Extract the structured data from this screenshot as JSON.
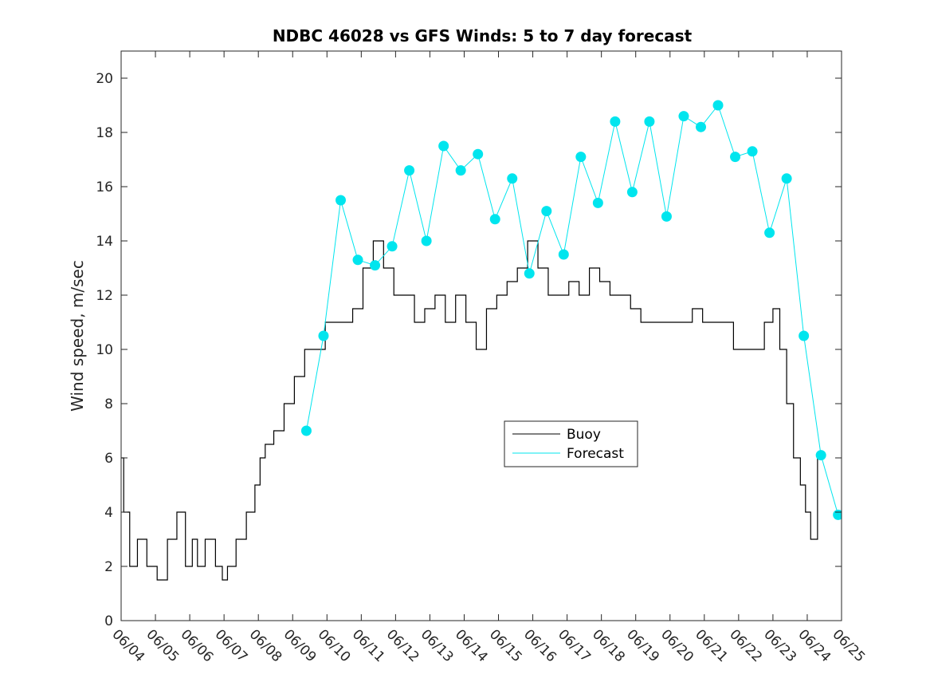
{
  "chart_data": {
    "type": "line",
    "title": "NDBC 46028 vs GFS Winds: 5 to 7 day forecast",
    "xlabel": "",
    "ylabel": "Wind speed, m/sec",
    "xlim": [
      0,
      21
    ],
    "ylim": [
      0,
      21
    ],
    "x_tick_labels": [
      "06/04",
      "06/05",
      "06/06",
      "06/07",
      "06/08",
      "06/09",
      "06/10",
      "06/11",
      "06/12",
      "06/13",
      "06/14",
      "06/15",
      "06/16",
      "06/17",
      "06/18",
      "06/19",
      "06/20",
      "06/21",
      "06/22",
      "06/23",
      "06/24",
      "06/25"
    ],
    "y_ticks": [
      0,
      2,
      4,
      6,
      8,
      10,
      12,
      14,
      16,
      18,
      20
    ],
    "grid": false,
    "legend": {
      "placement": "center",
      "entries": [
        "Buoy",
        "Forecast"
      ]
    },
    "colors": {
      "buoy": "#000000",
      "forecast": "#00e5ee",
      "marker": "#00e5ee",
      "axis": "#262626"
    },
    "series": [
      {
        "name": "Buoy",
        "x": [
          0,
          0.15,
          0.35,
          0.6,
          0.9,
          1.2,
          1.5,
          1.75,
          2.0,
          2.15,
          2.3,
          2.6,
          2.9,
          3.0,
          3.2,
          3.5,
          3.8,
          4.0,
          4.1,
          4.3,
          4.6,
          4.9,
          5.2,
          5.5,
          5.8,
          6.1,
          6.4,
          6.6,
          6.9,
          7.2,
          7.5,
          7.8,
          8.1,
          8.4,
          8.7,
          9.0,
          9.3,
          9.6,
          9.9,
          10.2,
          10.5,
          10.8,
          11.1,
          11.4,
          11.7,
          12.0,
          12.3,
          12.6,
          12.9,
          13.2,
          13.5,
          13.8,
          14.1,
          14.4,
          14.7,
          15.0,
          15.3,
          15.6,
          15.9,
          16.2,
          16.5,
          16.8,
          17.1,
          17.4,
          17.7,
          18.0,
          18.3,
          18.6,
          18.9,
          19.1,
          19.3,
          19.5,
          19.7,
          19.9,
          20.0,
          20.2,
          20.4
        ],
        "y": [
          6,
          4,
          2,
          3,
          2,
          1.5,
          3,
          4,
          2,
          3,
          2,
          3,
          2,
          1.5,
          2,
          3,
          4,
          5,
          6,
          6.5,
          7,
          8,
          9,
          10,
          10,
          11,
          11,
          11,
          11.5,
          13,
          14,
          13,
          12,
          12,
          11,
          11.5,
          12,
          11,
          12,
          11,
          10,
          11.5,
          12,
          12.5,
          13,
          14,
          13,
          12,
          12,
          12.5,
          12,
          13,
          12.5,
          12,
          12,
          11.5,
          11,
          11,
          11,
          11,
          11,
          11.5,
          11,
          11,
          11,
          10,
          10,
          10,
          11,
          11.5,
          10,
          8,
          6,
          5,
          4,
          3,
          6
        ]
      },
      {
        "name": "Forecast",
        "x": [
          5.4,
          5.9,
          6.4,
          6.9,
          7.4,
          7.9,
          8.4,
          8.9,
          9.4,
          9.9,
          10.4,
          10.9,
          11.4,
          11.9,
          12.4,
          12.9,
          13.4,
          13.9,
          14.4,
          14.9,
          15.4,
          15.9,
          16.4,
          16.9,
          17.4,
          17.9,
          18.4,
          18.9,
          19.4,
          19.9,
          20.4,
          20.9
        ],
        "y": [
          7,
          10.5,
          15.5,
          13.3,
          13.1,
          13.8,
          16.6,
          14.0,
          17.5,
          16.6,
          17.2,
          14.8,
          16.3,
          12.8,
          15.1,
          13.5,
          17.1,
          15.4,
          18.4,
          15.8,
          18.4,
          14.9,
          18.6,
          18.2,
          19.0,
          17.1,
          17.3,
          14.3,
          16.3,
          10.5,
          6.1,
          3.9
        ]
      }
    ]
  }
}
